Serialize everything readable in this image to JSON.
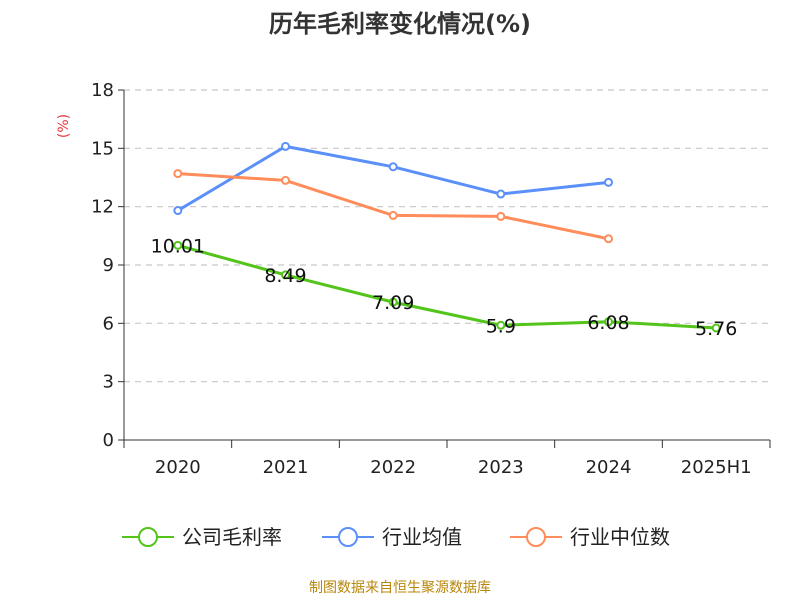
{
  "chart_data": {
    "type": "line",
    "title": "历年毛利率变化情况(%)",
    "ylabel": "(%)",
    "categories": [
      "2020",
      "2021",
      "2022",
      "2023",
      "2024",
      "2025H1"
    ],
    "ylim": [
      0,
      18
    ],
    "yticks": [
      0,
      3,
      6,
      9,
      12,
      15,
      18
    ],
    "grid": true,
    "legend_position": "bottom",
    "series": [
      {
        "name": "公司毛利率",
        "color": "#52c41a",
        "values": [
          10.01,
          8.49,
          7.09,
          5.9,
          6.08,
          5.76
        ],
        "labels": [
          "10.01",
          "8.49",
          "7.09",
          "5.9",
          "6.08",
          "5.76"
        ]
      },
      {
        "name": "行业均值",
        "color": "#5b8ff9",
        "values": [
          11.8,
          15.1,
          14.05,
          12.65,
          13.25,
          null
        ]
      },
      {
        "name": "行业中位数",
        "color": "#ff8c5a",
        "values": [
          13.7,
          13.35,
          11.55,
          11.5,
          10.35,
          null
        ]
      }
    ]
  },
  "source": "制图数据来自恒生聚源数据库"
}
